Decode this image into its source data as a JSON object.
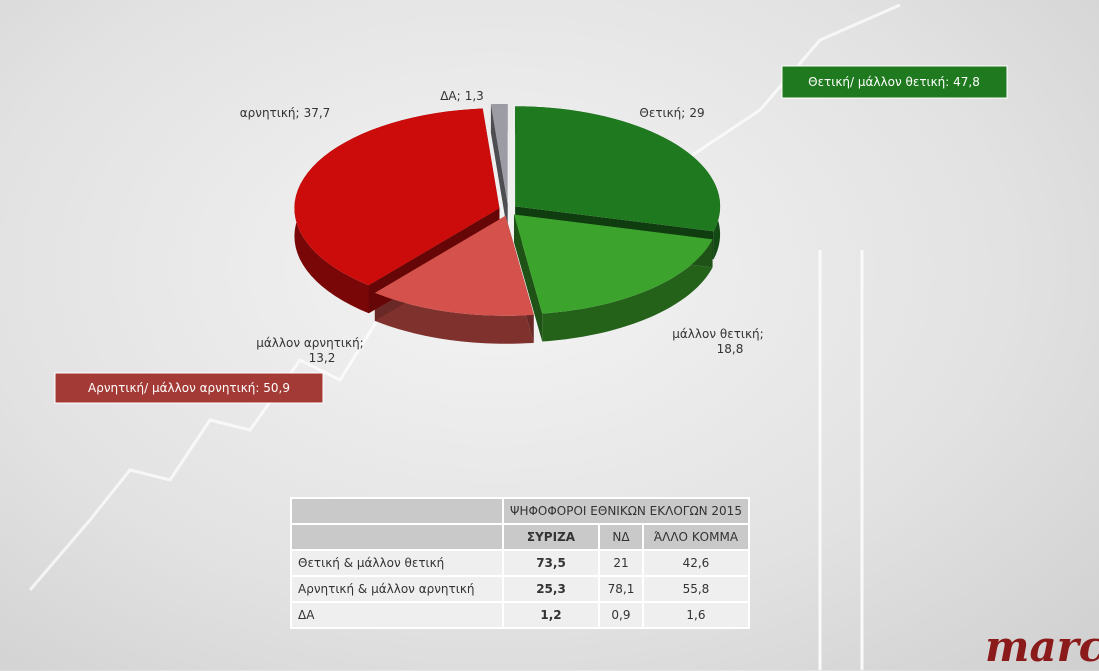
{
  "chart_data": {
    "type": "pie",
    "categories": [
      "Θετική;",
      "μάλλον θετική;",
      "μάλλον αρνητική;",
      "αρνητική;",
      "ΔΑ;"
    ],
    "values": [
      29,
      18.8,
      13.2,
      37.7,
      1.3
    ],
    "value_labels": [
      "29",
      "18,8",
      "13,2",
      "37,7",
      "1,3"
    ],
    "colors": [
      "#1f7a1f",
      "#3ca42c",
      "#d4524b",
      "#cc0b0b",
      "#9c9ca4"
    ],
    "annotations": [
      "Θετική/ μάλλον θετική: 47,8",
      "Αρνητική/ μάλλον  αρνητική: 50,9"
    ]
  },
  "table": {
    "group_header": "ΨΗΦΟΦΟΡΟΙ ΕΘΝΙΚΩΝ ΕΚΛΟΓΩΝ 2015",
    "columns": [
      "ΣΥΡΙΖΑ",
      "ΝΔ",
      "ΆΛΛΟ ΚΟΜΜΑ"
    ],
    "rows": [
      [
        "Θετική & μάλλον θετική",
        "73,5",
        "21",
        "42,6"
      ],
      [
        "Αρνητική & μάλλον αρνητική",
        "25,3",
        "78,1",
        "55,8"
      ],
      [
        "ΔΑ",
        "1,2",
        "0,9",
        "1,6"
      ]
    ]
  },
  "logo": "marc"
}
